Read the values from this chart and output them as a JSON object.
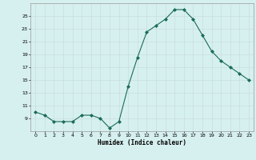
{
  "x": [
    0,
    1,
    2,
    3,
    4,
    5,
    6,
    7,
    8,
    9,
    10,
    11,
    12,
    13,
    14,
    15,
    16,
    17,
    18,
    19,
    20,
    21,
    22,
    23
  ],
  "y": [
    10,
    9.5,
    8.5,
    8.5,
    8.5,
    9.5,
    9.5,
    9,
    7.5,
    8.5,
    14,
    18.5,
    22.5,
    23.5,
    24.5,
    26,
    26,
    24.5,
    22,
    19.5,
    18,
    17,
    16,
    15
  ],
  "line_color": "#1a6b5a",
  "marker": "D",
  "marker_size": 2.0,
  "bg_color": "#d6f0ef",
  "grid_color": "#c8dede",
  "xlabel": "Humidex (Indice chaleur)",
  "xlim": [
    -0.5,
    23.5
  ],
  "ylim": [
    7,
    27
  ],
  "yticks": [
    9,
    11,
    13,
    15,
    17,
    19,
    21,
    23,
    25
  ],
  "ytick_labels": [
    "9",
    "11",
    "13",
    "15",
    "17",
    "19",
    "21",
    "23",
    "25"
  ],
  "xticks": [
    0,
    1,
    2,
    3,
    4,
    5,
    6,
    7,
    8,
    9,
    10,
    11,
    12,
    13,
    14,
    15,
    16,
    17,
    18,
    19,
    20,
    21,
    22,
    23
  ]
}
